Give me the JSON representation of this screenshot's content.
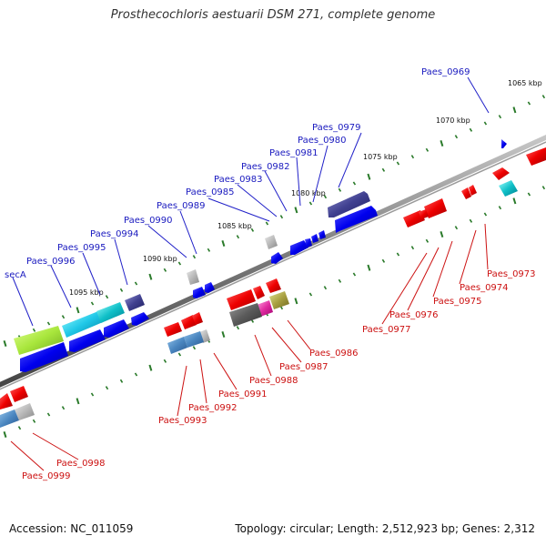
{
  "title": "Prosthecochloris aestuarii DSM 271, complete genome",
  "footer": {
    "accession": "Accession: NC_011059",
    "summary": "Topology: circular; Length: 2,512,923 bp; Genes: 2,312"
  },
  "ticks": [
    "1065 kbp",
    "1070 kbp",
    "1075 kbp",
    "1080 kbp",
    "1085 kbp",
    "1090 kbp",
    "1095 kbp"
  ],
  "top_genes": [
    "Paes_0969",
    "Paes_0979",
    "Paes_0980",
    "Paes_0981",
    "Paes_0982",
    "Paes_0983",
    "Paes_0985",
    "Paes_0989",
    "Paes_0990",
    "Paes_0994",
    "Paes_0995",
    "Paes_0996",
    "secA"
  ],
  "bottom_genes": [
    "Paes_0973",
    "Paes_0974",
    "Paes_0975",
    "Paes_0976",
    "Paes_0977",
    "Paes_0986",
    "Paes_0987",
    "Paes_0988",
    "Paes_0991",
    "Paes_0992",
    "Paes_0993",
    "Paes_0998",
    "Paes_0999"
  ],
  "colors": {
    "forward_label": "#1a1abf",
    "reverse_label": "#cc1111",
    "backbone": "#8a8a8a",
    "tick_mark": "#2a7a2a"
  }
}
